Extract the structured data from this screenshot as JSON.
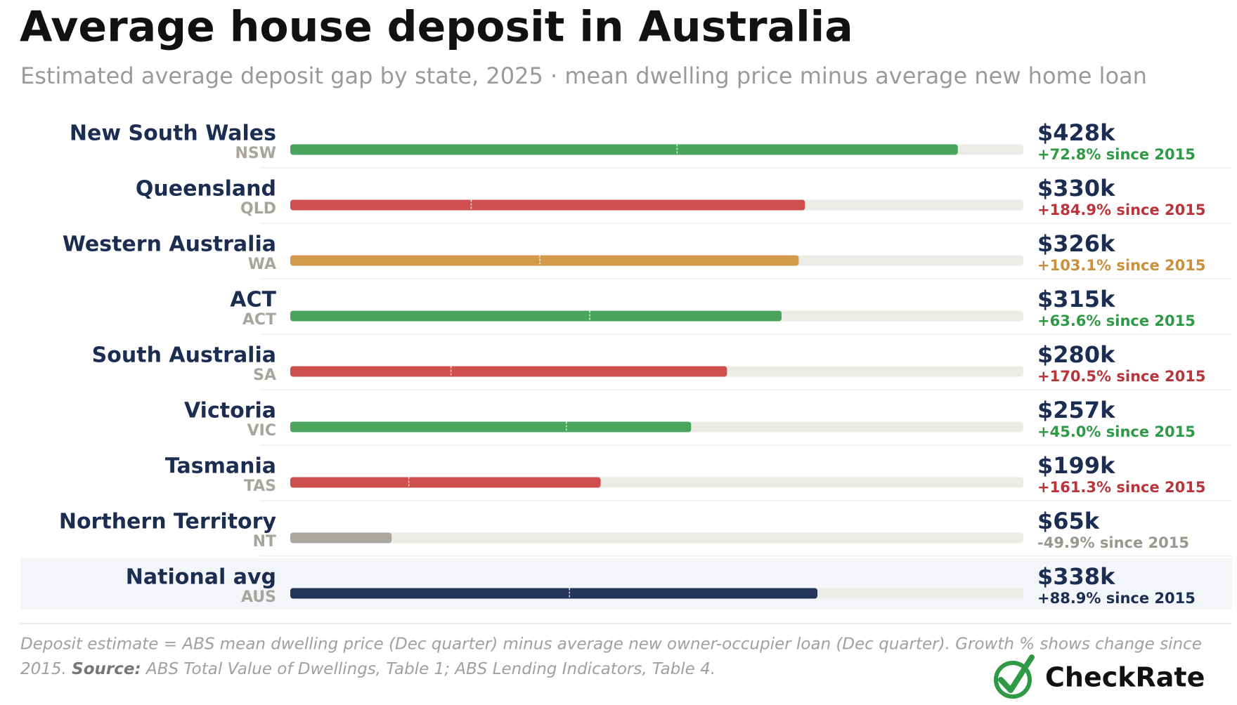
{
  "chart_data": {
    "type": "bar",
    "orientation": "horizontal",
    "title": "Average house deposit in Australia",
    "subtitle": "Estimated average deposit gap by state, 2025 · mean dwelling price minus average new home loan",
    "categories": [
      "New South Wales",
      "Queensland",
      "Western Australia",
      "ACT",
      "South Australia",
      "Victoria",
      "Tasmania",
      "Northern Territory",
      "National avg"
    ],
    "codes": [
      "NSW",
      "QLD",
      "WA",
      "ACT",
      "SA",
      "VIC",
      "TAS",
      "NT",
      "AUS"
    ],
    "values": [
      428,
      330,
      326,
      315,
      280,
      257,
      199,
      65,
      338
    ],
    "value_labels": [
      "$428k",
      "$330k",
      "$326k",
      "$315k",
      "$280k",
      "$257k",
      "$199k",
      "$65k",
      "$338k"
    ],
    "growth_labels": [
      "+72.8% since 2015",
      "+184.9% since 2015",
      "+103.1% since 2015",
      "+63.6% since 2015",
      "+170.5% since 2015",
      "+45.0% since 2015",
      "+161.3% since 2015",
      "-49.9% since 2015",
      "+88.9% since 2015"
    ],
    "markers": [
      248,
      116,
      160,
      192,
      103,
      177,
      76,
      null,
      179
    ],
    "colors": [
      "#4aa55c",
      "#cf4e4e",
      "#d49a4c",
      "#4aa55c",
      "#cf4e4e",
      "#4aa55c",
      "#cf4e4e",
      "#aaa79e",
      "#24355a"
    ],
    "label_colors": [
      "#2f9a45",
      "#b8343a",
      "#c98f3c",
      "#2f9a45",
      "#b8343a",
      "#2f9a45",
      "#b8343a",
      "#9a978e",
      "#1c2d52"
    ],
    "xlim": [
      0,
      470
    ],
    "footnote": "Deposit estimate = ABS mean dwelling price (Dec quarter) minus average new owner-occupier loan (Dec quarter). Growth % shows change since",
    "footnote_end": "2015.",
    "source_label": "Source:",
    "source": "ABS Total Value of Dwellings, Table 1; ABS Lending Indicators, Table 4."
  },
  "brand": "CheckRate"
}
